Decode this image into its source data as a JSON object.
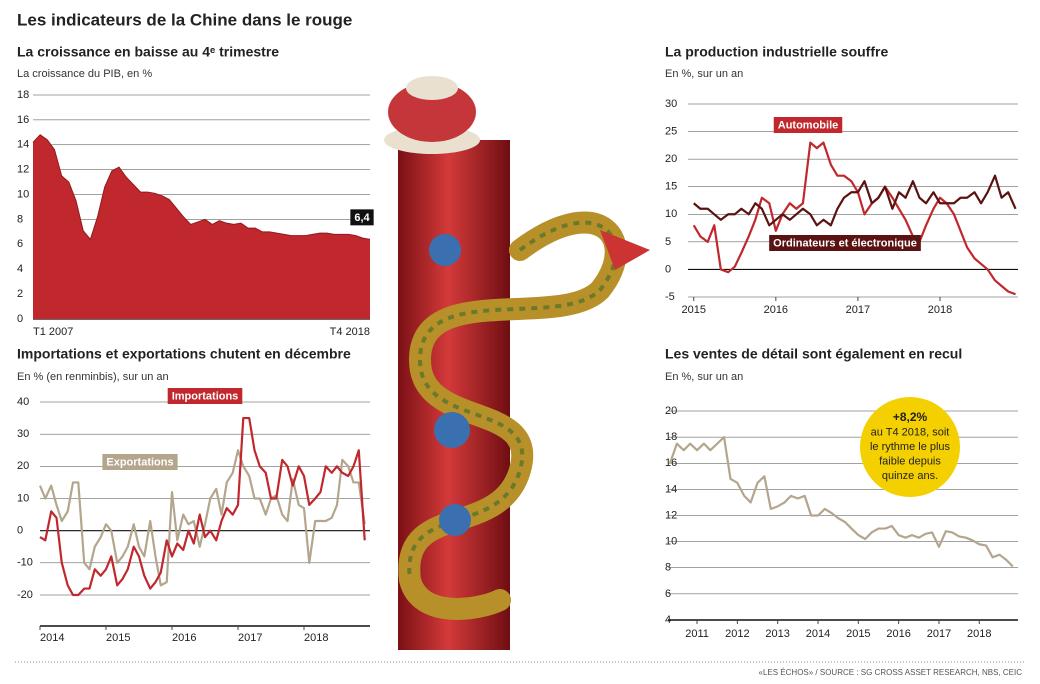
{
  "title": "Les indicateurs de la Chine dans le rouge",
  "source": "«LES ÉCHOS» / SOURCE : SG CROSS ASSET RESEARCH, NBS, CEIC",
  "chart_data": [
    {
      "type": "area",
      "title": "La croissance en baisse au 4ᵉ trimestre",
      "subtitle": "La croissance du PIB, en %",
      "categories": [
        "T1 2007",
        null,
        null,
        null,
        null,
        null,
        null,
        null,
        null,
        null,
        null,
        null,
        null,
        null,
        null,
        null,
        null,
        null,
        null,
        null,
        null,
        null,
        null,
        null,
        null,
        null,
        null,
        null,
        null,
        null,
        null,
        null,
        null,
        null,
        null,
        null,
        null,
        null,
        null,
        null,
        null,
        null,
        null,
        null,
        null,
        null,
        null,
        "T4 2018"
      ],
      "values": [
        14.2,
        14.8,
        14.4,
        13.6,
        11.5,
        11.0,
        9.5,
        7.1,
        6.4,
        8.2,
        10.6,
        11.9,
        12.2,
        11.4,
        10.8,
        10.2,
        10.2,
        10.1,
        9.9,
        9.6,
        8.9,
        8.2,
        7.6,
        7.8,
        8.0,
        7.6,
        7.9,
        7.7,
        7.6,
        7.7,
        7.3,
        7.3,
        7.0,
        7.0,
        6.9,
        6.8,
        6.7,
        6.7,
        6.7,
        6.8,
        6.9,
        6.9,
        6.8,
        6.8,
        6.8,
        6.7,
        6.5,
        6.4
      ],
      "value_labels": [
        null,
        null,
        null,
        null,
        null,
        null,
        null,
        null,
        null,
        null,
        null,
        null,
        null,
        null,
        null,
        null,
        null,
        null,
        null,
        null,
        null,
        null,
        null,
        null,
        null,
        null,
        null,
        null,
        null,
        null,
        null,
        null,
        null,
        null,
        null,
        null,
        null,
        null,
        null,
        null,
        null,
        null,
        null,
        null,
        null,
        null,
        null,
        "6,4"
      ],
      "color": "#c0282d",
      "ylim": [
        0,
        18
      ],
      "yticks": [
        0,
        2,
        4,
        6,
        8,
        10,
        12,
        14,
        16,
        18
      ],
      "grid": true
    },
    {
      "type": "line",
      "title": "La production industrielle souffre",
      "subtitle": "En %, sur un an",
      "x": [
        2015,
        2015.08,
        2015.17,
        2015.25,
        2015.33,
        2015.42,
        2015.5,
        2015.58,
        2015.67,
        2015.75,
        2015.83,
        2015.92,
        2016,
        2016.08,
        2016.17,
        2016.25,
        2016.33,
        2016.42,
        2016.5,
        2016.58,
        2016.67,
        2016.75,
        2016.83,
        2016.92,
        2017,
        2017.08,
        2017.17,
        2017.25,
        2017.33,
        2017.42,
        2017.5,
        2017.58,
        2017.67,
        2017.75,
        2017.83,
        2017.92,
        2018,
        2018.08,
        2018.17,
        2018.25,
        2018.33,
        2018.42,
        2018.5,
        2018.58,
        2018.67,
        2018.75,
        2018.83,
        2018.92
      ],
      "series": [
        {
          "name": "Automobile",
          "color": "#c0282d",
          "values": [
            8,
            6,
            5,
            8,
            0,
            -0.5,
            0.5,
            3,
            6,
            9,
            13,
            12,
            7,
            10,
            12,
            11,
            12,
            23,
            22,
            23,
            19,
            17,
            17,
            16,
            14,
            10,
            12,
            13,
            15,
            13,
            11,
            9,
            6,
            5,
            8,
            11,
            13,
            12,
            10,
            7,
            4,
            2,
            1,
            0,
            -2,
            -3,
            -4,
            -4.5
          ]
        },
        {
          "name": "Ordinateurs et électronique",
          "color": "#5a1212",
          "values": [
            12,
            11,
            11,
            10,
            9,
            10,
            10,
            11,
            10,
            12,
            11,
            8,
            9,
            10,
            9,
            10,
            11,
            10,
            8,
            9,
            8,
            11,
            13,
            14,
            14,
            16,
            12,
            13,
            15,
            11,
            14,
            13,
            16,
            13,
            12,
            14,
            12,
            12,
            12,
            13,
            13,
            14,
            12,
            14,
            17,
            13,
            14,
            11
          ]
        }
      ],
      "xlim": [
        2014.93,
        2018.95
      ],
      "xticks": [
        2015,
        2016,
        2017,
        2018
      ],
      "ylim": [
        -5,
        30
      ],
      "yticks": [
        -5,
        0,
        5,
        10,
        15,
        20,
        25,
        30
      ],
      "grid": true
    },
    {
      "type": "line",
      "title": "Importations et exportations chutent en décembre",
      "subtitle": "En % (en renminbis), sur un an",
      "x": [
        2014,
        2014.08,
        2014.17,
        2014.25,
        2014.33,
        2014.42,
        2014.5,
        2014.58,
        2014.67,
        2014.75,
        2014.83,
        2014.92,
        2015,
        2015.08,
        2015.17,
        2015.25,
        2015.33,
        2015.42,
        2015.5,
        2015.58,
        2015.67,
        2015.75,
        2015.83,
        2015.92,
        2016,
        2016.08,
        2016.17,
        2016.25,
        2016.33,
        2016.42,
        2016.5,
        2016.58,
        2016.67,
        2016.75,
        2016.83,
        2016.92,
        2017,
        2017.08,
        2017.17,
        2017.25,
        2017.33,
        2017.42,
        2017.5,
        2017.58,
        2017.67,
        2017.75,
        2017.83,
        2017.92,
        2018,
        2018.08,
        2018.17,
        2018.25,
        2018.33,
        2018.42,
        2018.5,
        2018.58,
        2018.67,
        2018.75,
        2018.83,
        2018.92
      ],
      "series": [
        {
          "name": "Exportations",
          "color": "#b3a68c",
          "values": [
            14,
            10,
            14,
            8,
            3,
            6,
            15,
            15,
            -10,
            -12,
            -5,
            -2,
            2,
            0,
            -10,
            -8,
            -5,
            2,
            -5,
            -8,
            3,
            -8,
            -17,
            -16,
            12,
            -3,
            5,
            2,
            3,
            -5,
            2,
            10,
            13,
            5,
            15,
            18,
            25,
            20,
            17,
            10,
            10,
            5,
            10,
            11,
            5,
            3,
            16,
            8,
            7,
            -10,
            3,
            3,
            3,
            4,
            8,
            22,
            20,
            15,
            15,
            2
          ]
        },
        {
          "name": "Importations",
          "color": "#c0282d",
          "values": [
            -2,
            -3,
            6,
            4,
            -10,
            -17,
            -20,
            -20,
            -18,
            -18,
            -12,
            -14,
            -12,
            -8,
            -17,
            -15,
            -12,
            -5,
            -8,
            -14,
            -18,
            -16,
            -13,
            -3,
            -8,
            -4,
            -6,
            0,
            -4,
            5,
            -2,
            0,
            -3,
            3,
            7,
            5,
            8,
            35,
            35,
            25,
            20,
            18,
            10,
            10,
            22,
            20,
            14,
            20,
            17,
            8,
            10,
            12,
            20,
            18,
            20,
            18,
            17,
            20,
            25,
            -3
          ]
        }
      ],
      "xlim": [
        2014,
        2019
      ],
      "xticks": [
        2014,
        2015,
        2016,
        2017,
        2018
      ],
      "ylim": [
        -20,
        40
      ],
      "yticks": [
        -20,
        -10,
        0,
        10,
        20,
        30,
        40
      ],
      "grid": true
    },
    {
      "type": "line",
      "title": "Les ventes de détail sont également en recul",
      "subtitle": "En %, sur un an",
      "x": [
        2010.33,
        2010.5,
        2010.67,
        2010.83,
        2011,
        2011.17,
        2011.33,
        2011.5,
        2011.67,
        2011.83,
        2012,
        2012.17,
        2012.33,
        2012.5,
        2012.67,
        2012.83,
        2013,
        2013.17,
        2013.33,
        2013.5,
        2013.67,
        2013.83,
        2014,
        2014.17,
        2014.33,
        2014.5,
        2014.67,
        2014.83,
        2015,
        2015.17,
        2015.33,
        2015.5,
        2015.67,
        2015.83,
        2016,
        2016.17,
        2016.33,
        2016.5,
        2016.67,
        2016.83,
        2017,
        2017.17,
        2017.33,
        2017.5,
        2017.67,
        2017.83,
        2018,
        2018.17,
        2018.33,
        2018.5,
        2018.67,
        2018.83
      ],
      "values": [
        16,
        17.5,
        17,
        17.5,
        17,
        17.5,
        17,
        17.5,
        18,
        14.8,
        14.5,
        13.5,
        13,
        14.5,
        15,
        12.5,
        12.7,
        13,
        13.5,
        13.3,
        13.5,
        12,
        12,
        12.5,
        12.2,
        11.8,
        11.5,
        11,
        10.5,
        10.2,
        10.7,
        11,
        11,
        11.2,
        10.5,
        10.3,
        10.5,
        10.3,
        10.6,
        10.7,
        9.6,
        10.8,
        10.7,
        10.4,
        10.3,
        10.1,
        9.8,
        9.7,
        8.8,
        9,
        8.6,
        8.1
      ],
      "color": "#b3a68c",
      "xlim": [
        2010.28,
        2018.96
      ],
      "xticks": [
        2011,
        2012,
        2013,
        2014,
        2015,
        2016,
        2017,
        2018
      ],
      "ylim": [
        4,
        20
      ],
      "yticks": [
        4,
        6,
        8,
        10,
        12,
        14,
        16,
        18,
        20
      ],
      "grid": true,
      "annotations": [
        "+8,2%",
        "au T4 2018, soit",
        "le rythme le plus",
        "faible depuis",
        "quinze ans."
      ]
    }
  ]
}
